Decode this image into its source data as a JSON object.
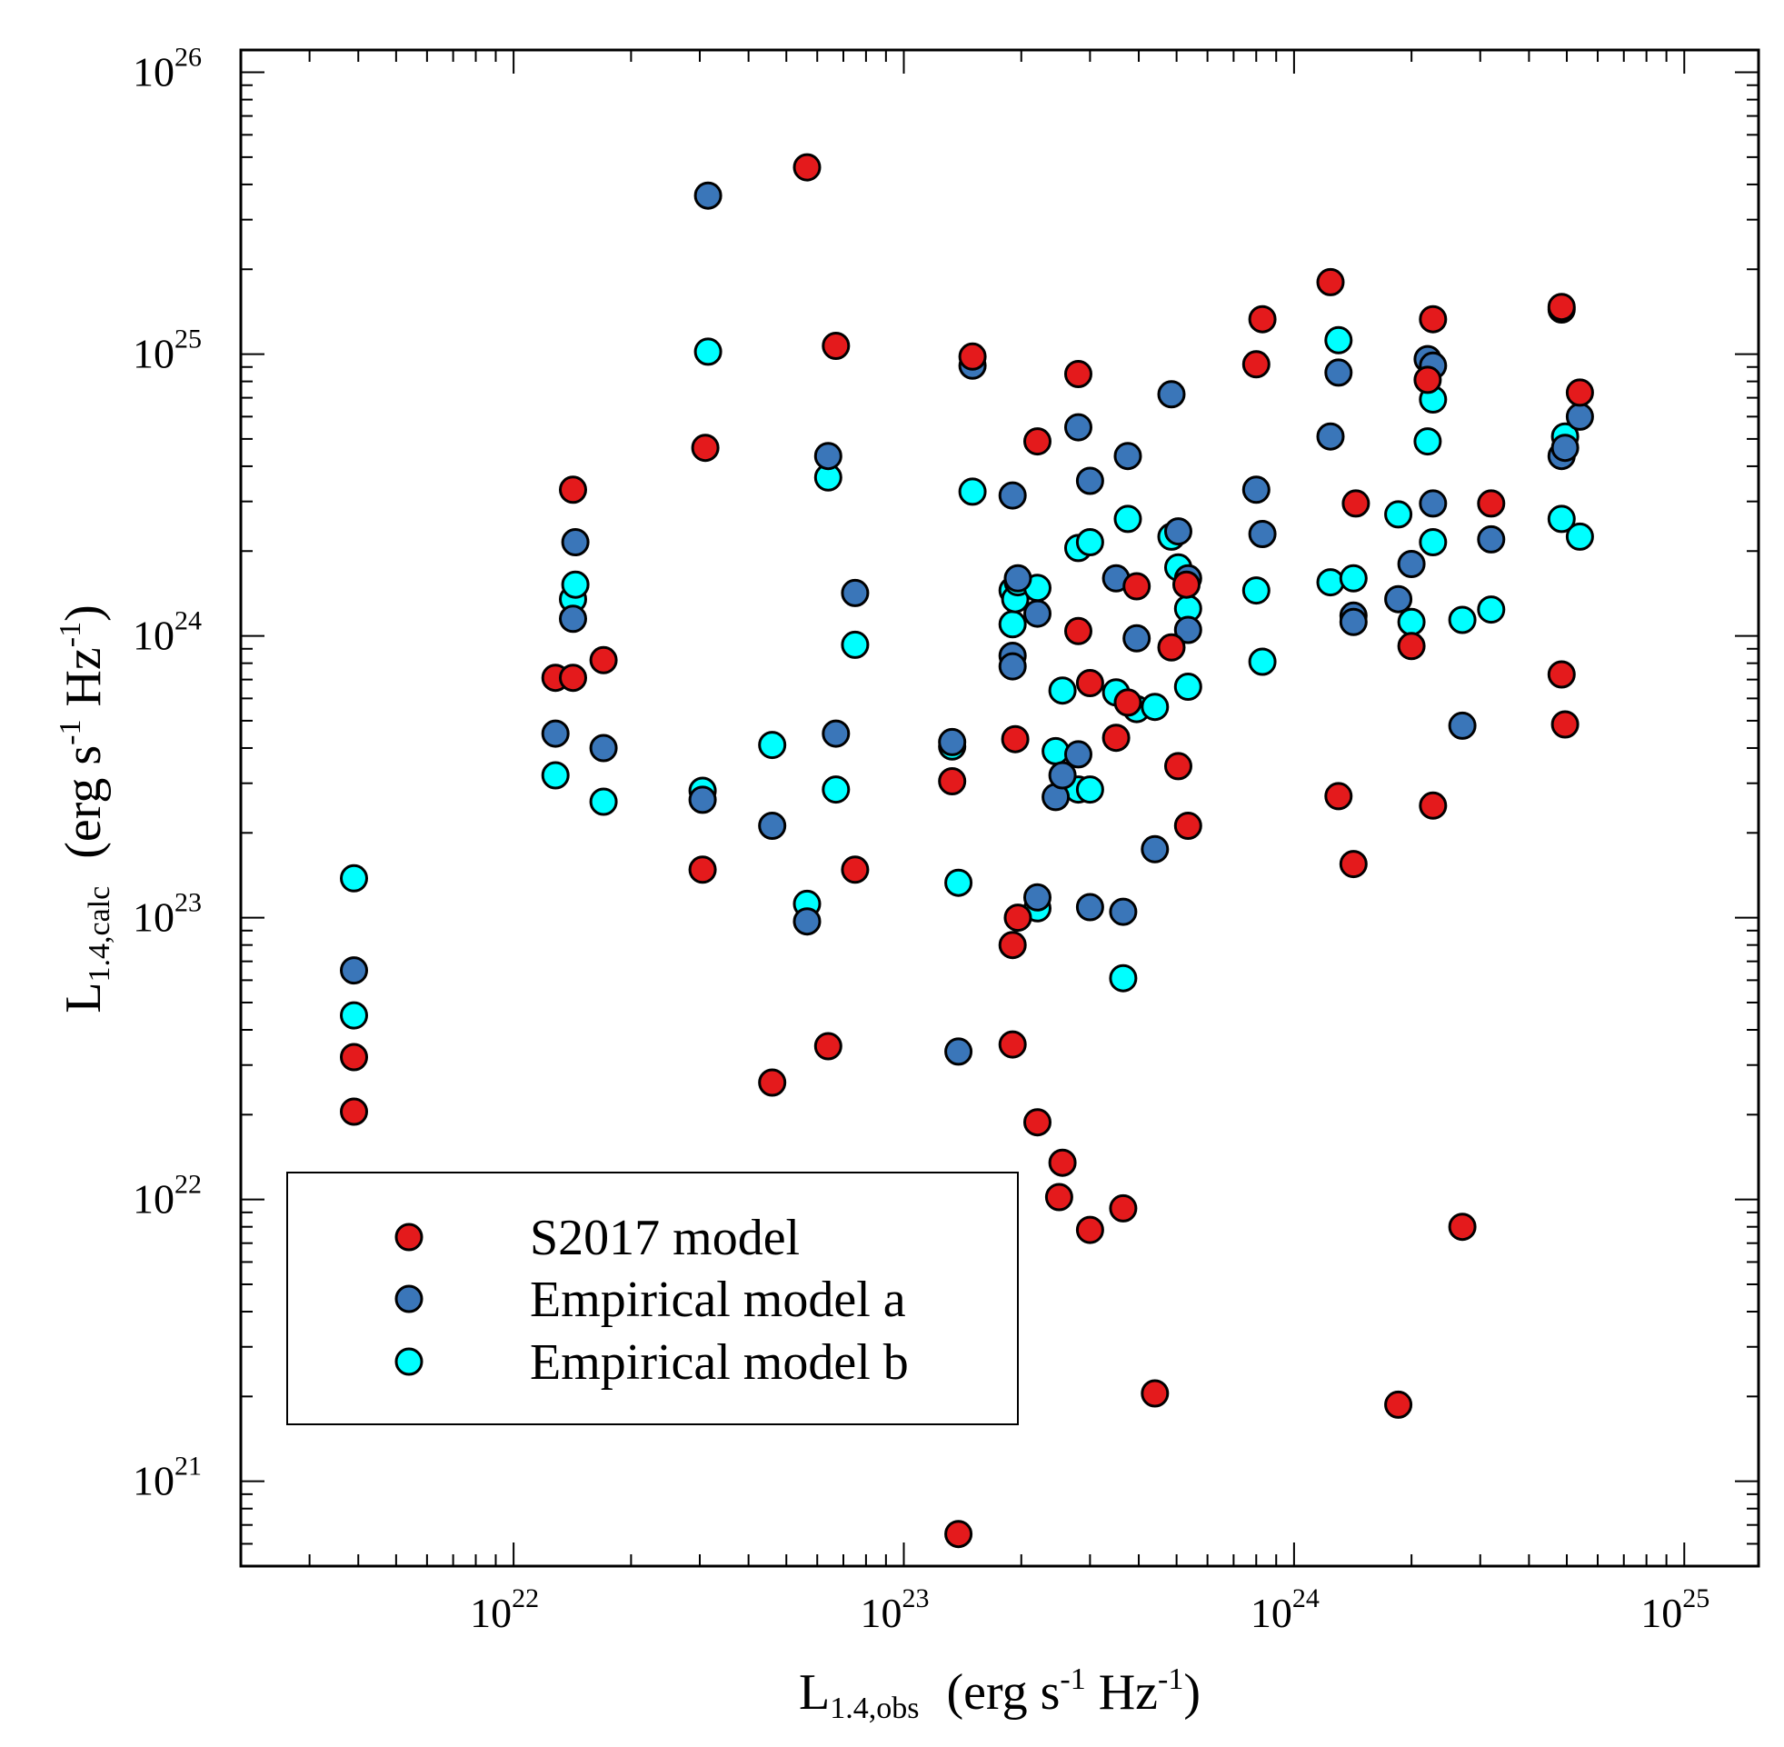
{
  "chart_data": {
    "type": "scatter",
    "xscale": "log",
    "yscale": "log",
    "xlim": [
      2e+21,
      1.55e+25
    ],
    "ylim": [
      5e+20,
      1.2e+26
    ],
    "grid": false,
    "legend_position": "bottom-left",
    "xlabel": {
      "main": "L",
      "sub": "1.4,obs",
      "units_prefix": "(erg s",
      "units_sup1": "-1",
      "units_mid": " Hz",
      "units_sup2": "-1",
      "units_suffix": ")"
    },
    "ylabel": {
      "main": "L",
      "sub": "1.4,calc",
      "units_prefix": "(erg s",
      "units_sup1": "-1",
      "units_mid": " Hz",
      "units_sup2": "-1",
      "units_suffix": ")"
    },
    "x_ticks": [
      {
        "value": 1e+22,
        "base": "10",
        "exp": "22"
      },
      {
        "value": 1e+23,
        "base": "10",
        "exp": "23"
      },
      {
        "value": 1e+24,
        "base": "10",
        "exp": "24"
      },
      {
        "value": 1e+25,
        "base": "10",
        "exp": "25"
      }
    ],
    "y_ticks": [
      {
        "value": 1e+21,
        "base": "10",
        "exp": "21"
      },
      {
        "value": 1e+22,
        "base": "10",
        "exp": "22"
      },
      {
        "value": 1e+23,
        "base": "10",
        "exp": "23"
      },
      {
        "value": 1e+24,
        "base": "10",
        "exp": "24"
      },
      {
        "value": 1e+25,
        "base": "10",
        "exp": "25"
      },
      {
        "value": 1e+26,
        "base": "10",
        "exp": "26"
      }
    ],
    "series": [
      {
        "name": "S2017 model",
        "color": "#e41a1c",
        "points": [
          [
            3.9e+21,
            3.2e+22
          ],
          [
            3.9e+21,
            2.05e+22
          ],
          [
            1.28e+22,
            7.1e+23
          ],
          [
            1.42e+22,
            3.3e+24
          ],
          [
            1.42e+22,
            7.1e+23
          ],
          [
            1.7e+22,
            8.2e+23
          ],
          [
            3.05e+22,
            1.48e+23
          ],
          [
            3.1e+22,
            4.65e+24
          ],
          [
            4.6e+22,
            2.6e+22
          ],
          [
            5.65e+22,
            4.6e+25
          ],
          [
            6.4e+22,
            3.5e+22
          ],
          [
            6.7e+22,
            1.07e+25
          ],
          [
            7.5e+22,
            1.48e+23
          ],
          [
            1.33e+23,
            3.05e+23
          ],
          [
            1.38e+23,
            6.5e+20
          ],
          [
            1.5e+23,
            9.8e+24
          ],
          [
            1.9e+23,
            8e+22
          ],
          [
            1.9e+23,
            3.55e+22
          ],
          [
            1.93e+23,
            4.3e+23
          ],
          [
            1.96e+23,
            1e+23
          ],
          [
            2.2e+23,
            4.9e+24
          ],
          [
            2.2e+23,
            1.88e+22
          ],
          [
            2.55e+23,
            1.35e+22
          ],
          [
            2.5e+23,
            1.02e+22
          ],
          [
            2.8e+23,
            8.5e+24
          ],
          [
            2.8e+23,
            1.04e+24
          ],
          [
            3e+23,
            6.8e+23
          ],
          [
            3e+23,
            7.8e+21
          ],
          [
            3.5e+23,
            4.35e+23
          ],
          [
            3.65e+23,
            9.3e+21
          ],
          [
            3.75e+23,
            5.8e+23
          ],
          [
            3.95e+23,
            1.5e+24
          ],
          [
            4.4e+23,
            2.05e+21
          ],
          [
            4.85e+23,
            9.1e+23
          ],
          [
            5.05e+23,
            3.45e+23
          ],
          [
            5.3e+23,
            1.52e+24
          ],
          [
            5.35e+23,
            2.12e+23
          ],
          [
            8e+23,
            9.2e+24
          ],
          [
            8.3e+23,
            1.33e+25
          ],
          [
            1.24e+24,
            1.8e+25
          ],
          [
            1.3e+24,
            2.7e+23
          ],
          [
            1.42e+24,
            1.55e+23
          ],
          [
            1.44e+24,
            2.95e+24
          ],
          [
            1.85e+24,
            1.87e+21
          ],
          [
            2e+24,
            9.2e+23
          ],
          [
            2.2e+24,
            8.1e+24
          ],
          [
            2.27e+24,
            1.33e+25
          ],
          [
            2.27e+24,
            2.5e+23
          ],
          [
            2.7e+24,
            8e+21
          ],
          [
            3.2e+24,
            2.95e+24
          ],
          [
            4.85e+24,
            1.47e+25
          ],
          [
            4.85e+24,
            7.3e+23
          ],
          [
            4.95e+24,
            4.85e+23
          ],
          [
            5.4e+24,
            7.3e+24
          ]
        ]
      },
      {
        "name": "Empirical model a",
        "color": "#3a76b9",
        "points": [
          [
            3.9e+21,
            6.5e+22
          ],
          [
            1.28e+22,
            4.5e+23
          ],
          [
            1.42e+22,
            1.15e+24
          ],
          [
            1.44e+22,
            2.15e+24
          ],
          [
            1.7e+22,
            4e+23
          ],
          [
            3.05e+22,
            2.62e+23
          ],
          [
            3.15e+22,
            3.65e+25
          ],
          [
            4.6e+22,
            2.12e+23
          ],
          [
            5.65e+22,
            9.7e+22
          ],
          [
            6.4e+22,
            4.35e+24
          ],
          [
            6.7e+22,
            4.5e+23
          ],
          [
            7.5e+22,
            1.42e+24
          ],
          [
            1.33e+23,
            4.2e+23
          ],
          [
            1.38e+23,
            3.35e+22
          ],
          [
            1.5e+23,
            9.1e+24
          ],
          [
            1.9e+23,
            3.15e+24
          ],
          [
            1.9e+23,
            8.5e+23
          ],
          [
            1.9e+23,
            7.8e+23
          ],
          [
            1.96e+23,
            1.6e+24
          ],
          [
            2.2e+23,
            1.2e+24
          ],
          [
            2.2e+23,
            1.18e+23
          ],
          [
            2.45e+23,
            2.68e+23
          ],
          [
            2.55e+23,
            3.2e+23
          ],
          [
            2.8e+23,
            5.5e+24
          ],
          [
            2.8e+23,
            3.8e+23
          ],
          [
            3e+23,
            3.55e+24
          ],
          [
            3e+23,
            1.09e+23
          ],
          [
            3.5e+23,
            1.6e+24
          ],
          [
            3.65e+23,
            1.05e+23
          ],
          [
            3.75e+23,
            4.35e+24
          ],
          [
            3.95e+23,
            9.8e+23
          ],
          [
            4.4e+23,
            1.75e+23
          ],
          [
            4.85e+23,
            7.2e+24
          ],
          [
            5.05e+23,
            2.35e+24
          ],
          [
            5.35e+23,
            1.6e+24
          ],
          [
            5.35e+23,
            1.05e+24
          ],
          [
            8e+23,
            3.3e+24
          ],
          [
            8.3e+23,
            2.3e+24
          ],
          [
            1.24e+24,
            5.1e+24
          ],
          [
            1.3e+24,
            8.6e+24
          ],
          [
            1.42e+24,
            1.18e+24
          ],
          [
            1.42e+24,
            1.12e+24
          ],
          [
            1.85e+24,
            1.35e+24
          ],
          [
            2e+24,
            1.8e+24
          ],
          [
            2.2e+24,
            9.6e+24
          ],
          [
            2.27e+24,
            9.1e+24
          ],
          [
            2.27e+24,
            2.95e+24
          ],
          [
            2.7e+24,
            4.8e+23
          ],
          [
            3.2e+24,
            2.2e+24
          ],
          [
            4.85e+24,
            1.44e+25
          ],
          [
            4.85e+24,
            4.35e+24
          ],
          [
            4.95e+24,
            4.65e+24
          ],
          [
            5.4e+24,
            6e+24
          ]
        ]
      },
      {
        "name": "Empirical model b",
        "color": "#00ffff",
        "points": [
          [
            3.9e+21,
            1.38e+23
          ],
          [
            3.9e+21,
            4.5e+22
          ],
          [
            1.28e+22,
            3.2e+23
          ],
          [
            1.42e+22,
            1.35e+24
          ],
          [
            1.44e+22,
            1.52e+24
          ],
          [
            1.7e+22,
            2.58e+23
          ],
          [
            3.05e+22,
            2.82e+23
          ],
          [
            3.15e+22,
            1.02e+25
          ],
          [
            4.6e+22,
            4.1e+23
          ],
          [
            5.65e+22,
            1.12e+23
          ],
          [
            6.4e+22,
            3.65e+24
          ],
          [
            6.7e+22,
            2.85e+23
          ],
          [
            7.5e+22,
            9.3e+23
          ],
          [
            1.33e+23,
            4.05e+23
          ],
          [
            1.38e+23,
            1.33e+23
          ],
          [
            1.5e+23,
            3.25e+24
          ],
          [
            1.9e+23,
            1.45e+24
          ],
          [
            1.9e+23,
            1.1e+24
          ],
          [
            1.93e+23,
            1.35e+24
          ],
          [
            1.96e+23,
            1.55e+24
          ],
          [
            2.2e+23,
            1.48e+24
          ],
          [
            2.2e+23,
            1.08e+23
          ],
          [
            2.45e+23,
            3.9e+23
          ],
          [
            2.55e+23,
            6.4e+23
          ],
          [
            2.8e+23,
            2.05e+24
          ],
          [
            2.8e+23,
            2.85e+23
          ],
          [
            3e+23,
            2.15e+24
          ],
          [
            3e+23,
            2.85e+23
          ],
          [
            3.5e+23,
            6.3e+23
          ],
          [
            3.65e+23,
            6.1e+22
          ],
          [
            3.75e+23,
            2.6e+24
          ],
          [
            3.95e+23,
            5.5e+23
          ],
          [
            4.4e+23,
            5.6e+23
          ],
          [
            4.85e+23,
            2.25e+24
          ],
          [
            5.05e+23,
            1.75e+24
          ],
          [
            5.35e+23,
            1.25e+24
          ],
          [
            5.35e+23,
            6.6e+23
          ],
          [
            8e+23,
            1.45e+24
          ],
          [
            8.3e+23,
            8.1e+23
          ],
          [
            1.24e+24,
            1.55e+24
          ],
          [
            1.3e+24,
            1.12e+25
          ],
          [
            1.42e+24,
            1.6e+24
          ],
          [
            1.85e+24,
            2.7e+24
          ],
          [
            2e+24,
            1.12e+24
          ],
          [
            2.2e+24,
            4.9e+24
          ],
          [
            2.27e+24,
            6.9e+24
          ],
          [
            2.27e+24,
            2.15e+24
          ],
          [
            2.7e+24,
            1.14e+24
          ],
          [
            3.2e+24,
            1.24e+24
          ],
          [
            4.85e+24,
            2.6e+24
          ],
          [
            4.95e+24,
            5.1e+24
          ],
          [
            5.4e+24,
            2.25e+24
          ]
        ]
      }
    ]
  }
}
